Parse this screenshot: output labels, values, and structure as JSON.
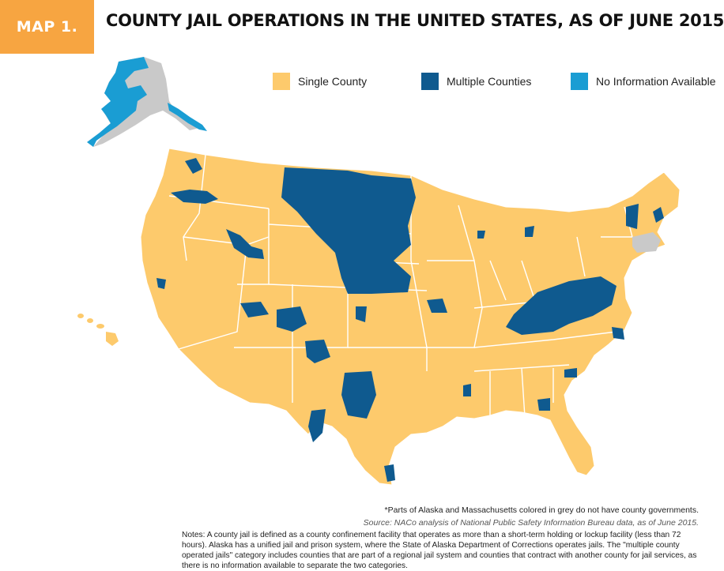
{
  "header": {
    "badge": "MAP 1.",
    "title": "COUNTY JAIL OPERATIONS IN THE UNITED STATES, AS OF JUNE 2015"
  },
  "legend": {
    "items": [
      {
        "label": "Single County",
        "color": "#fdca6c"
      },
      {
        "label": "Multiple Counties",
        "color": "#0f5a8f"
      },
      {
        "label": "No Information Available",
        "color": "#1a9dd3"
      }
    ]
  },
  "map": {
    "colors": {
      "single_county": "#fdca6c",
      "multiple_counties": "#0f5a8f",
      "no_information": "#1a9dd3",
      "no_county_government": "#c9c9c9",
      "borders": "#ffffff"
    }
  },
  "footer": {
    "footnote": "*Parts of Alaska and Massachusetts colored in grey do not have county governments.",
    "source": "Source: NACo analysis of National Public Safety Information Bureau data, as of June 2015.",
    "notes": "Notes: A county jail is defined as a county confinement facility that operates as more than a short-term holding or lockup facility (less than 72 hours).  Alaska has a unified jail and prison system, where the State of Alaska Department of Corrections operates jails.  The \"multiple county operated jails\" category includes counties that are part of a regional jail system and counties that contract with another county for jail services, as there is no information available to separate the two categories."
  }
}
